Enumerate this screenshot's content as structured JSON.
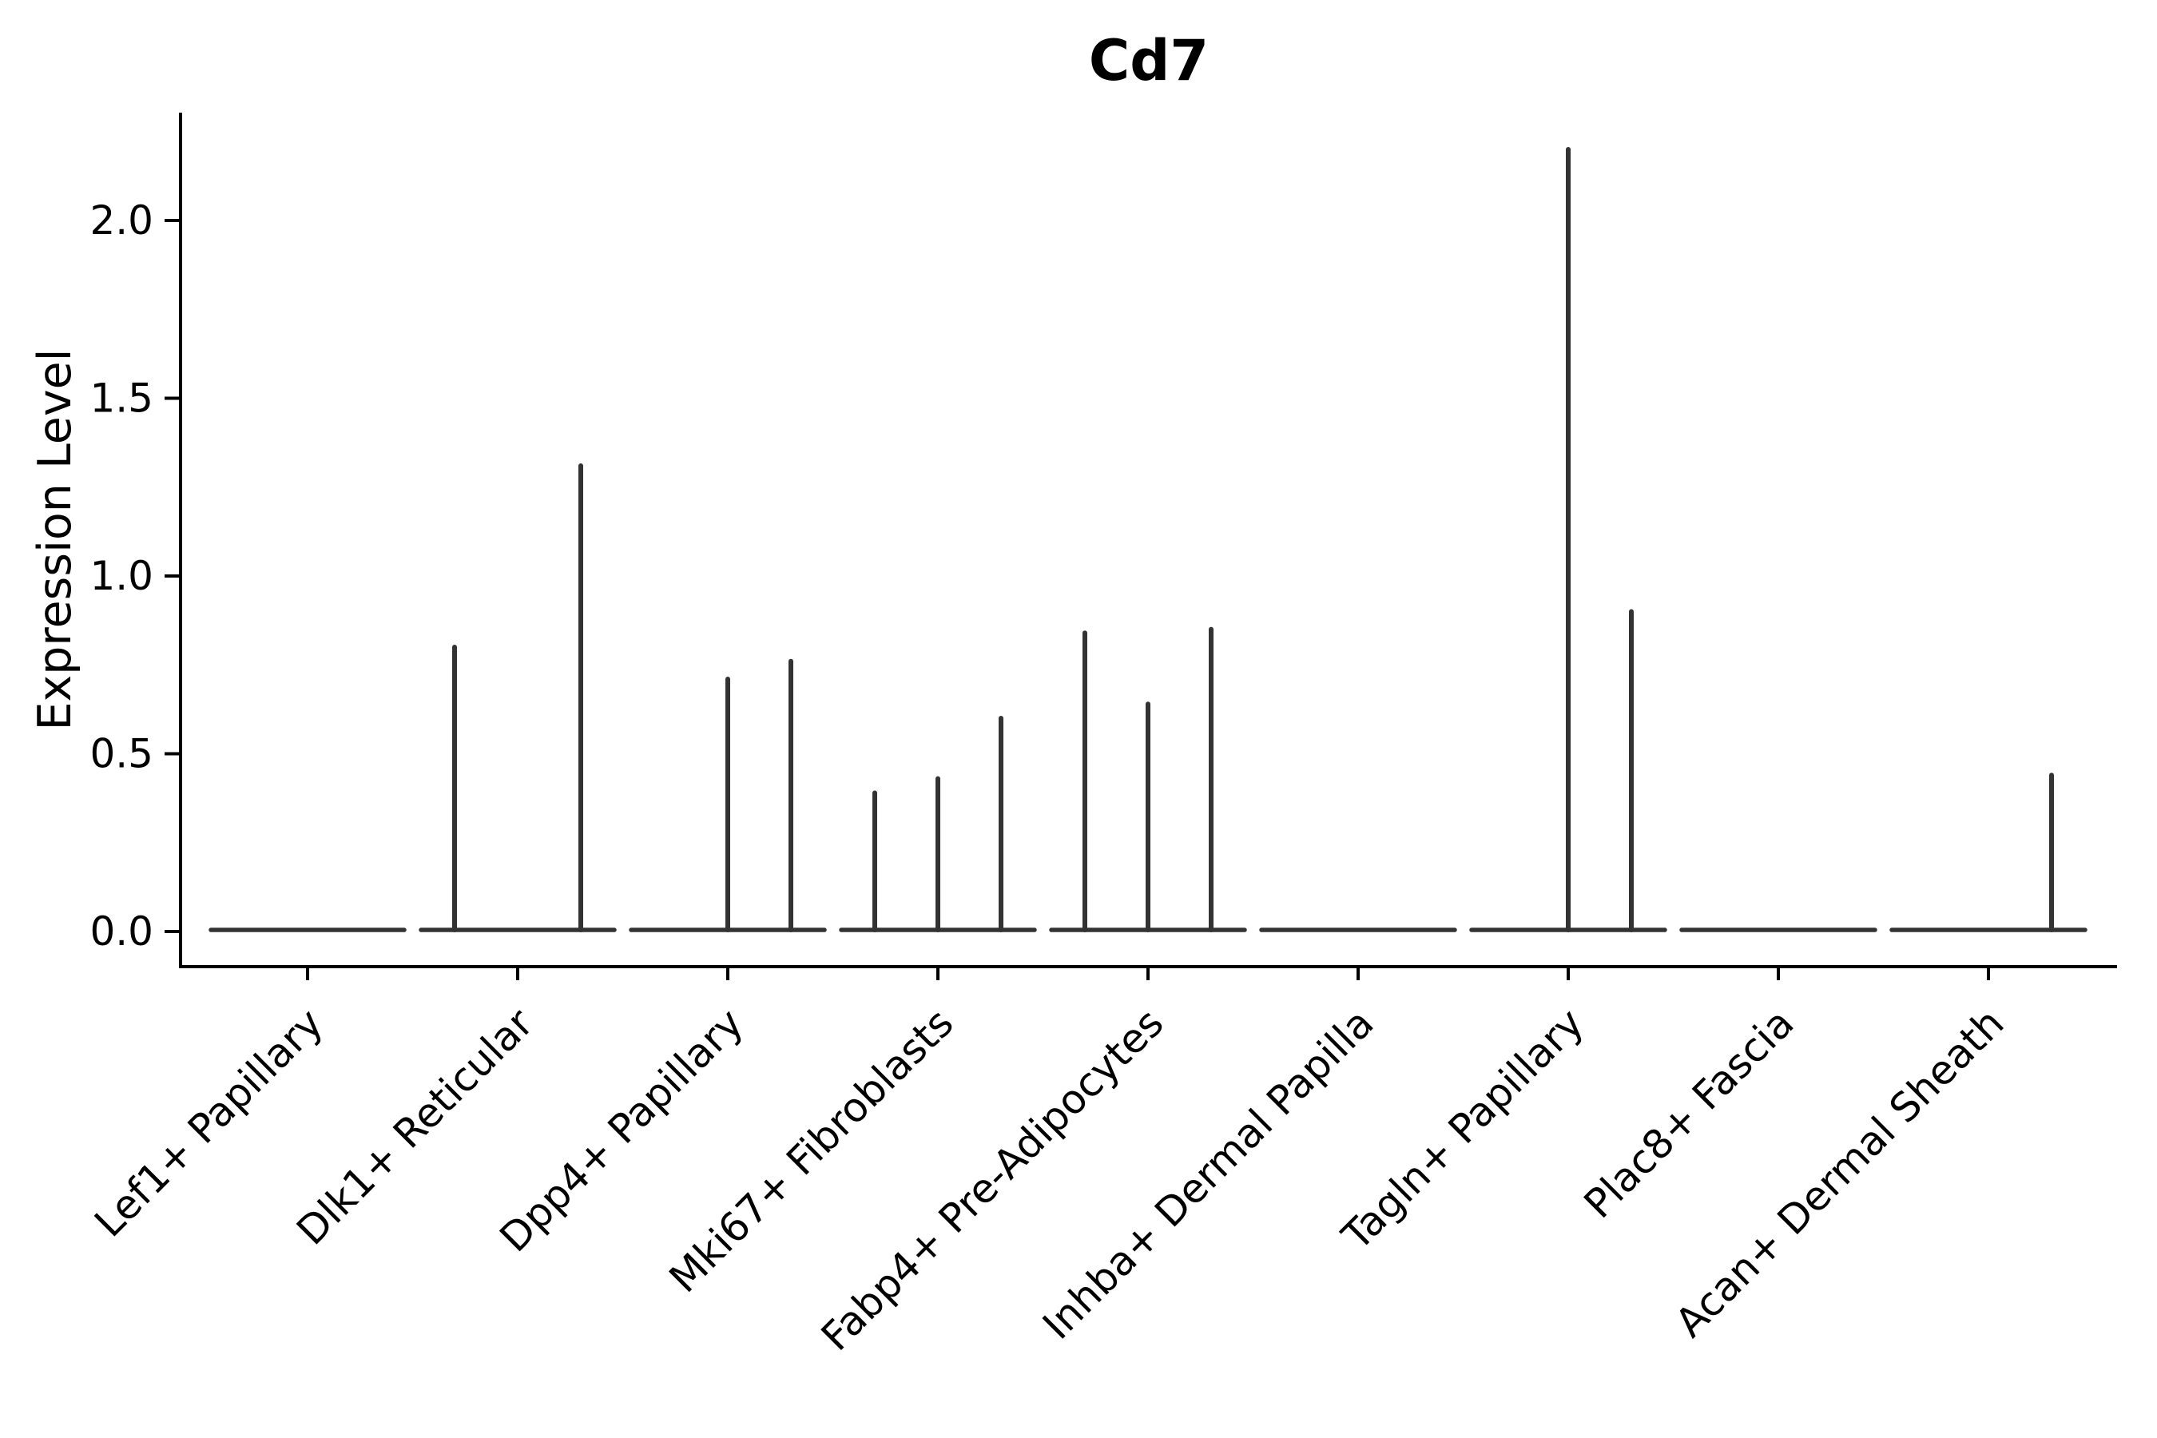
{
  "chart_data": {
    "type": "violin",
    "title": "Cd7",
    "ylabel": "Expression Level",
    "xlabel": "",
    "categories": [
      "Lef1+ Papillary",
      "Dlk1+ Reticular",
      "Dpp4+ Papillary",
      "Mki67+ Fibroblasts",
      "Fabp4+ Pre-Adipocytes",
      "Inhba+ Dermal Papilla",
      "Tagln+ Papillary",
      "Plac8+ Fascia",
      "Acan+ Dermal Sheath"
    ],
    "ytick_labels": [
      "0.0",
      "0.5",
      "1.0",
      "1.5",
      "2.0"
    ],
    "ytick_values": [
      0.0,
      0.5,
      1.0,
      1.5,
      2.0
    ],
    "ylim": [
      -0.1,
      2.3
    ],
    "grid": false,
    "legend": "none",
    "violins_per_category": 3,
    "baseline_expression": 0.0,
    "spikes": [
      {
        "category_index": 1,
        "category": "Dlk1+ Reticular",
        "slot": 0,
        "value": 0.8
      },
      {
        "category_index": 1,
        "category": "Dlk1+ Reticular",
        "slot": 2,
        "value": 1.31
      },
      {
        "category_index": 2,
        "category": "Dpp4+ Papillary",
        "slot": 1,
        "value": 0.71
      },
      {
        "category_index": 2,
        "category": "Dpp4+ Papillary",
        "slot": 2,
        "value": 0.76
      },
      {
        "category_index": 3,
        "category": "Mki67+ Fibroblasts",
        "slot": 0,
        "value": 0.39
      },
      {
        "category_index": 3,
        "category": "Mki67+ Fibroblasts",
        "slot": 1,
        "value": 0.43
      },
      {
        "category_index": 3,
        "category": "Mki67+ Fibroblasts",
        "slot": 2,
        "value": 0.6
      },
      {
        "category_index": 4,
        "category": "Fabp4+ Pre-Adipocytes",
        "slot": 0,
        "value": 0.84
      },
      {
        "category_index": 4,
        "category": "Fabp4+ Pre-Adipocytes",
        "slot": 1,
        "value": 0.64
      },
      {
        "category_index": 4,
        "category": "Fabp4+ Pre-Adipocytes",
        "slot": 2,
        "value": 0.85
      },
      {
        "category_index": 6,
        "category": "Tagln+ Papillary",
        "slot": 1,
        "value": 2.2
      },
      {
        "category_index": 6,
        "category": "Tagln+ Papillary",
        "slot": 2,
        "value": 0.9
      },
      {
        "category_index": 8,
        "category": "Acan+ Dermal Sheath",
        "slot": 2,
        "value": 0.44
      }
    ],
    "colors": {
      "axis": "#000000",
      "text": "#000000",
      "violin": "#333333",
      "background": "#ffffff"
    }
  }
}
